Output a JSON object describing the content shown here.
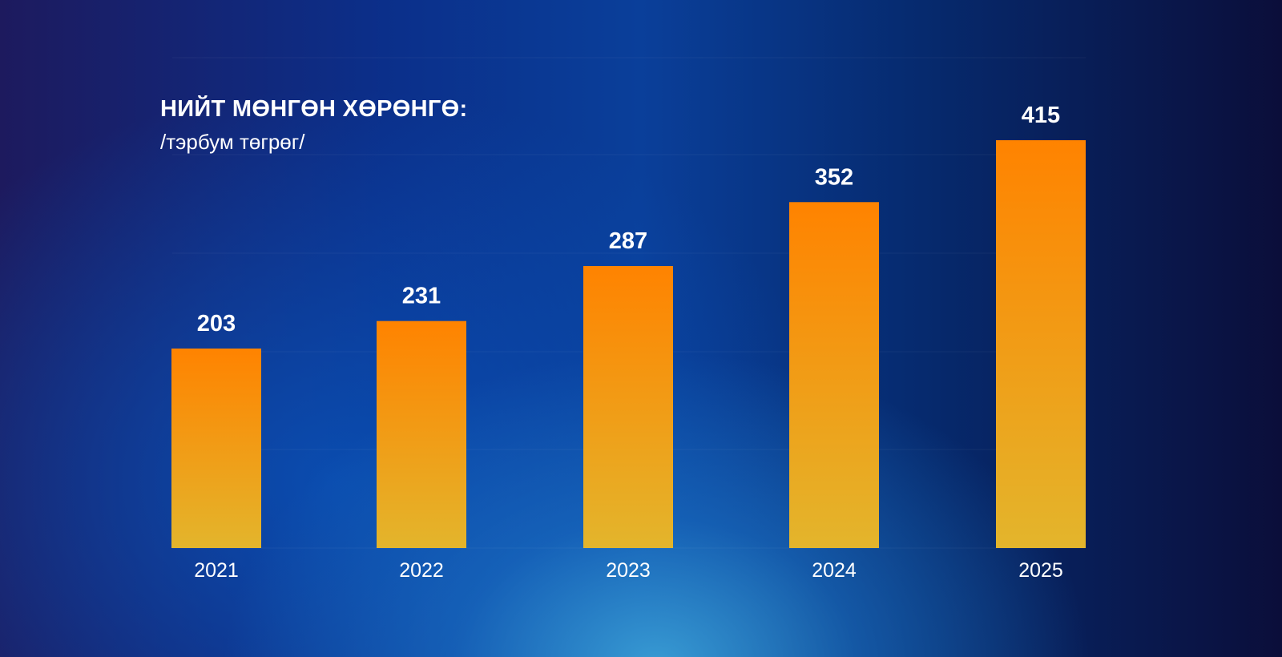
{
  "chart_data": {
    "type": "bar",
    "title": "НИЙТ МӨНГӨН ХӨРӨНГӨ:",
    "subtitle": "/тэрбум төгрөг/",
    "categories": [
      "2021",
      "2022",
      "2023",
      "2024",
      "2025"
    ],
    "values": [
      203,
      231,
      287,
      352,
      415
    ],
    "xlabel": "",
    "ylabel": "",
    "ylim": [
      0,
      415
    ],
    "grid": false,
    "legend": "none",
    "colors": {
      "bar_top": "#ff8300",
      "bar_bottom": "#e3b52c",
      "label": "#ffffff"
    }
  }
}
